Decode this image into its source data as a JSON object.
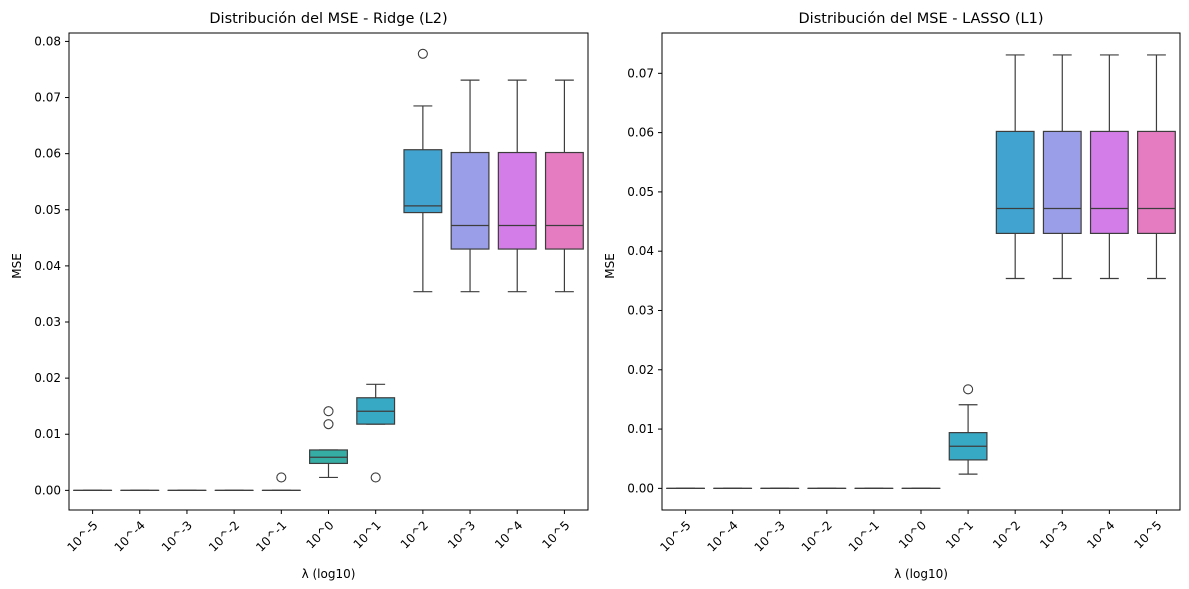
{
  "chart_data": [
    {
      "type": "box",
      "title": "Distribución del MSE - Ridge (L2)",
      "xlabel": "λ (log10)",
      "ylabel": "MSE",
      "categories": [
        "10^-5",
        "10^-4",
        "10^-3",
        "10^-2",
        "10^-1",
        "10^0",
        "10^1",
        "10^2",
        "10^3",
        "10^4",
        "10^5"
      ],
      "ylim": [
        -0.0035,
        0.0815
      ],
      "yticks": [
        "0.00",
        "0.01",
        "0.02",
        "0.03",
        "0.04",
        "0.05",
        "0.06",
        "0.07",
        "0.08"
      ],
      "ytick_values": [
        0.0,
        0.01,
        0.02,
        0.03,
        0.04,
        0.05,
        0.06,
        0.07,
        0.08
      ],
      "boxes": [
        {
          "whislo": 0.0,
          "q1": 0.0,
          "med": 0.0,
          "q3": 0.0,
          "whishi": 0.0,
          "fliers": [],
          "color": "#f77189"
        },
        {
          "whislo": 0.0,
          "q1": 0.0,
          "med": 0.0,
          "q3": 0.0,
          "whishi": 0.0,
          "fliers": [],
          "color": "#e38332"
        },
        {
          "whislo": 0.0,
          "q1": 0.0,
          "med": 0.0,
          "q3": 0.0,
          "whishi": 0.0,
          "fliers": [],
          "color": "#ae9d31"
        },
        {
          "whislo": 0.0,
          "q1": 0.0,
          "med": 0.0,
          "q3": 0.0,
          "whishi": 0.0,
          "fliers": [],
          "color": "#77ab31"
        },
        {
          "whislo": 0.0,
          "q1": 0.0,
          "med": 0.0,
          "q3": 0.0,
          "whishi": 0.0,
          "fliers": [
            0.0023
          ],
          "color": "#33b07a"
        },
        {
          "whislo": 0.0023,
          "q1": 0.0048,
          "med": 0.0059,
          "q3": 0.0072,
          "whishi": 0.0072,
          "fliers": [
            0.0118,
            0.0141
          ],
          "color": "#36ada4"
        },
        {
          "whislo": 0.0118,
          "q1": 0.0118,
          "med": 0.0141,
          "q3": 0.0165,
          "whishi": 0.0189,
          "fliers": [
            0.0023
          ],
          "color": "#38a9c5"
        },
        {
          "whislo": 0.0354,
          "q1": 0.0495,
          "med": 0.0507,
          "q3": 0.0607,
          "whishi": 0.0685,
          "fliers": [
            0.0778
          ],
          "color": "#41a4d0"
        },
        {
          "whislo": 0.0354,
          "q1": 0.043,
          "med": 0.0472,
          "q3": 0.0602,
          "whishi": 0.0731,
          "fliers": [],
          "color": "#9a9ee8"
        },
        {
          "whislo": 0.0354,
          "q1": 0.043,
          "med": 0.0472,
          "q3": 0.0602,
          "whishi": 0.0731,
          "fliers": [],
          "color": "#d27de8"
        },
        {
          "whislo": 0.0354,
          "q1": 0.043,
          "med": 0.0472,
          "q3": 0.0602,
          "whishi": 0.0731,
          "fliers": [],
          "color": "#e57cc2"
        }
      ]
    },
    {
      "type": "box",
      "title": "Distribución del MSE - LASSO (L1)",
      "xlabel": "λ (log10)",
      "ylabel": "MSE",
      "categories": [
        "10^-5",
        "10^-4",
        "10^-3",
        "10^-2",
        "10^-1",
        "10^0",
        "10^1",
        "10^2",
        "10^3",
        "10^4",
        "10^5"
      ],
      "ylim": [
        -0.00365,
        0.0768
      ],
      "yticks": [
        "0.00",
        "0.01",
        "0.02",
        "0.03",
        "0.04",
        "0.05",
        "0.06",
        "0.07"
      ],
      "ytick_values": [
        0.0,
        0.01,
        0.02,
        0.03,
        0.04,
        0.05,
        0.06,
        0.07
      ],
      "boxes": [
        {
          "whislo": 0.0,
          "q1": 0.0,
          "med": 0.0,
          "q3": 0.0,
          "whishi": 0.0,
          "fliers": [],
          "color": "#f77189"
        },
        {
          "whislo": 0.0,
          "q1": 0.0,
          "med": 0.0,
          "q3": 0.0,
          "whishi": 0.0,
          "fliers": [],
          "color": "#e38332"
        },
        {
          "whislo": 0.0,
          "q1": 0.0,
          "med": 0.0,
          "q3": 0.0,
          "whishi": 0.0,
          "fliers": [],
          "color": "#ae9d31"
        },
        {
          "whislo": 0.0,
          "q1": 0.0,
          "med": 0.0,
          "q3": 0.0,
          "whishi": 0.0,
          "fliers": [],
          "color": "#77ab31"
        },
        {
          "whislo": 0.0,
          "q1": 0.0,
          "med": 0.0,
          "q3": 0.0,
          "whishi": 0.0,
          "fliers": [],
          "color": "#33b07a"
        },
        {
          "whislo": 0.0,
          "q1": 0.0,
          "med": 0.0,
          "q3": 0.0,
          "whishi": 0.0,
          "fliers": [],
          "color": "#36ada4"
        },
        {
          "whislo": 0.0024,
          "q1": 0.0048,
          "med": 0.0071,
          "q3": 0.0094,
          "whishi": 0.0141,
          "fliers": [
            0.0167
          ],
          "color": "#38a9c5"
        },
        {
          "whislo": 0.0354,
          "q1": 0.043,
          "med": 0.0472,
          "q3": 0.0602,
          "whishi": 0.0731,
          "fliers": [],
          "color": "#41a4d0"
        },
        {
          "whislo": 0.0354,
          "q1": 0.043,
          "med": 0.0472,
          "q3": 0.0602,
          "whishi": 0.0731,
          "fliers": [],
          "color": "#9a9ee8"
        },
        {
          "whislo": 0.0354,
          "q1": 0.043,
          "med": 0.0472,
          "q3": 0.0602,
          "whishi": 0.0731,
          "fliers": [],
          "color": "#d27de8"
        },
        {
          "whislo": 0.0354,
          "q1": 0.043,
          "med": 0.0472,
          "q3": 0.0602,
          "whishi": 0.0731,
          "fliers": [],
          "color": "#e57cc2"
        }
      ]
    }
  ]
}
